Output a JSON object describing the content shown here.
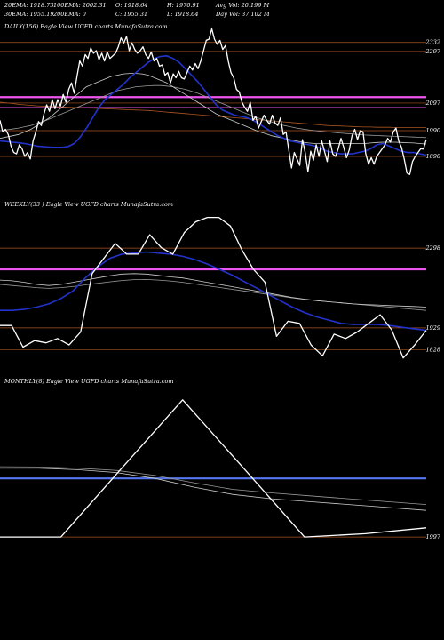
{
  "header": {
    "row1": [
      {
        "name": "ema20",
        "text": "20EMA: 1918.73"
      },
      {
        "name": "ema100",
        "text": "100EMA: 2002.31"
      },
      {
        "name": "open",
        "text": "O: 1918.64"
      },
      {
        "name": "high",
        "text": "H: 1970.91"
      },
      {
        "name": "avgvol",
        "text": "Avg Vol: 20.199 M"
      }
    ],
    "row2": [
      {
        "name": "ema30",
        "text": "30EMA: 1955.19"
      },
      {
        "name": "ema200",
        "text": "200EMA: 0"
      },
      {
        "name": "close",
        "text": "C: 1955.31"
      },
      {
        "name": "low",
        "text": "L: 1918.64"
      },
      {
        "name": "dayvol",
        "text": "Day Vol: 37.102  M"
      }
    ]
  },
  "colors": {
    "price": "#ffffff",
    "ema_fast": "#2233cc",
    "ema_slow": "#cccccc",
    "ema_slower": "#999999",
    "magenta": "#ee55ee",
    "blue_line": "#5577ee",
    "level": "#aa5522"
  },
  "chart_data": [
    {
      "type": "line",
      "title": "DAILY(156) Eagle   View  UGFD charts MunafaSutra.com",
      "price_labels": [
        2332,
        2297,
        2097,
        1990,
        1890
      ],
      "series": [
        {
          "role": "price",
          "values": [
            2030,
            1985,
            1995,
            1975,
            1930,
            1905,
            1900,
            1935,
            1920,
            1890,
            1905,
            1880,
            1950,
            1985,
            2025,
            2010,
            2055,
            2090,
            2065,
            2110,
            2075,
            2110,
            2085,
            2130,
            2100,
            2150,
            2175,
            2135,
            2200,
            2260,
            2240,
            2285,
            2270,
            2310,
            2290,
            2300,
            2265,
            2290,
            2260,
            2295,
            2270,
            2280,
            2290,
            2315,
            2350,
            2330,
            2355,
            2300,
            2330,
            2305,
            2290,
            2300,
            2315,
            2285,
            2270,
            2295,
            2260,
            2270,
            2240,
            2245,
            2205,
            2215,
            2175,
            2210,
            2195,
            2220,
            2195,
            2190,
            2215,
            2240,
            2225,
            2250,
            2230,
            2260,
            2300,
            2340,
            2345,
            2385,
            2345,
            2325,
            2340,
            2305,
            2320,
            2260,
            2215,
            2195,
            2150,
            2140,
            2100,
            2080,
            2065,
            2100,
            2030,
            2045,
            2000,
            2025,
            2050,
            2030,
            2015,
            2050,
            2020,
            2010,
            2040,
            1975,
            1985,
            1915,
            1845,
            1905,
            1880,
            1855,
            1955,
            1905,
            1830,
            1910,
            1875,
            1935,
            1890,
            1950,
            1910,
            1870,
            1950,
            1900,
            1890,
            1920,
            1960,
            1925,
            1885,
            1915,
            1970,
            1995,
            1955,
            1990,
            1985,
            1900,
            1860,
            1885,
            1860,
            1890,
            1905,
            1920,
            1935,
            1960,
            1945,
            1985,
            2000,
            1950,
            1925,
            1880,
            1825,
            1820,
            1870,
            1890,
            1905,
            1920,
            1918.64,
            1955.31
          ]
        },
        {
          "role": "ema_fast",
          "values": [
            1950,
            1948,
            1945,
            1943,
            1940,
            1935,
            1930,
            1928,
            1926,
            1925,
            1925,
            1928,
            1940,
            1965,
            2000,
            2040,
            2080,
            2110,
            2130,
            2150,
            2170,
            2195,
            2215,
            2235,
            2255,
            2270,
            2278,
            2280,
            2270,
            2255,
            2230,
            2205,
            2180,
            2150,
            2120,
            2090,
            2070,
            2060,
            2050,
            2045,
            2040,
            2030,
            2015,
            2000,
            1985,
            1970,
            1960,
            1950,
            1945,
            1940,
            1935,
            1930,
            1920,
            1910,
            1905,
            1900,
            1900,
            1900,
            1905,
            1910,
            1920,
            1935,
            1940,
            1930,
            1920,
            1910,
            1905,
            1905,
            1900,
            1895
          ]
        },
        {
          "role": "ema_slow",
          "values": [
            1960,
            1965,
            1970,
            1975,
            1985,
            1995,
            2010,
            2025,
            2040,
            2060,
            2080,
            2100,
            2120,
            2140,
            2160,
            2170,
            2180,
            2190,
            2200,
            2205,
            2210,
            2212,
            2212,
            2210,
            2205,
            2195,
            2185,
            2175,
            2160,
            2145,
            2130,
            2115,
            2100,
            2085,
            2070,
            2055,
            2045,
            2035,
            2025,
            2015,
            2005,
            1995,
            1985,
            1978,
            1970,
            1965,
            1960,
            1955,
            1950,
            1945,
            1942,
            1940,
            1940,
            1940,
            1940,
            1940,
            1940,
            1940,
            1940,
            1940,
            1942,
            1944,
            1945,
            1945,
            1945,
            1944,
            1943,
            1942,
            1940,
            1938
          ]
        },
        {
          "role": "ema_slower",
          "values": [
            1990,
            1993,
            1996,
            2000,
            2005,
            2010,
            2018,
            2025,
            2035,
            2045,
            2055,
            2065,
            2075,
            2085,
            2095,
            2105,
            2115,
            2125,
            2135,
            2145,
            2150,
            2155,
            2160,
            2162,
            2164,
            2165,
            2165,
            2163,
            2160,
            2155,
            2150,
            2143,
            2135,
            2125,
            2115,
            2105,
            2095,
            2085,
            2075,
            2065,
            2055,
            2045,
            2037,
            2030,
            2023,
            2016,
            2010,
            2005,
            2000,
            1996,
            1993,
            1990,
            1987,
            1985,
            1983,
            1981,
            1979,
            1977,
            1975,
            1973,
            1972,
            1971,
            1970,
            1969,
            1968,
            1967,
            1966,
            1965,
            1964,
            1963
          ]
        },
        {
          "role": "ema_100",
          "values": [
            2100,
            2098,
            2095,
            2092,
            2090,
            2088,
            2086,
            2085,
            2084,
            2083,
            2082,
            2081,
            2080,
            2079,
            2078,
            2077,
            2076,
            2075,
            2074,
            2073,
            2072,
            2071,
            2070,
            2069,
            2068,
            2066,
            2064,
            2062,
            2060,
            2058,
            2056,
            2054,
            2052,
            2050,
            2048,
            2046,
            2044,
            2042,
            2040,
            2038,
            2036,
            2034,
            2032,
            2030,
            2028,
            2026,
            2024,
            2022,
            2020,
            2018,
            2016,
            2014,
            2012,
            2010,
            2009,
            2008,
            2007,
            2006,
            2005,
            2004,
            2004,
            2003,
            2003,
            2003,
            2002,
            2002,
            2002,
            2002,
            2002,
            2002
          ]
        }
      ]
    },
    {
      "type": "line",
      "title": "WEEKLY(33                              ) Eagle   View  UGFD charts MunafaSutra.com",
      "price_labels": [
        2298,
        1929,
        1828
      ],
      "series": [
        {
          "role": "price",
          "values": [
            1940,
            1940,
            1840,
            1870,
            1860,
            1880,
            1850,
            1910,
            2180,
            2250,
            2320,
            2270,
            2270,
            2360,
            2300,
            2270,
            2370,
            2420,
            2440,
            2440,
            2400,
            2290,
            2200,
            2140,
            1890,
            1960,
            1950,
            1850,
            1800,
            1900,
            1880,
            1910,
            1950,
            1990,
            1920,
            1790,
            1850,
            1918
          ]
        },
        {
          "role": "ema_fast",
          "values": [
            2010,
            2010,
            2015,
            2025,
            2040,
            2065,
            2100,
            2160,
            2210,
            2250,
            2270,
            2275,
            2280,
            2275,
            2270,
            2260,
            2245,
            2225,
            2200,
            2175,
            2145,
            2115,
            2085,
            2055,
            2025,
            2000,
            1980,
            1965,
            1950,
            1945,
            1945,
            1945,
            1940,
            1932,
            1925,
            1918
          ]
        },
        {
          "role": "ema_slow",
          "values": [
            2150,
            2147,
            2140,
            2130,
            2125,
            2130,
            2140,
            2150,
            2160,
            2170,
            2178,
            2180,
            2178,
            2172,
            2165,
            2160,
            2150,
            2140,
            2130,
            2120,
            2110,
            2100,
            2090,
            2080,
            2070,
            2062,
            2055,
            2050,
            2045,
            2040,
            2037,
            2035,
            2032,
            2030,
            2028,
            2025
          ]
        },
        {
          "role": "ema_slower",
          "values": [
            2130,
            2125,
            2120,
            2115,
            2112,
            2115,
            2120,
            2128,
            2135,
            2142,
            2148,
            2152,
            2153,
            2150,
            2146,
            2140,
            2132,
            2124,
            2116,
            2108,
            2100,
            2092,
            2084,
            2076,
            2068,
            2061,
            2055,
            2050,
            2045,
            2040,
            2035,
            2030,
            2025,
            2020,
            2015,
            2010
          ]
        }
      ]
    },
    {
      "type": "line",
      "title": "MONTHLY(8) Eagle   View  UGFD charts MunafaSutra.com",
      "price_labels": [
        1997
      ],
      "series": [
        {
          "role": "price",
          "values": [
            1997,
            1997,
            2470,
            2940,
            2470,
            1997,
            2020,
            2060
          ]
        },
        {
          "role": "ema_slow",
          "values": [
            2470,
            2470,
            2460,
            2440,
            2400,
            2340,
            2290,
            2260,
            2240,
            2220,
            2200,
            2180
          ]
        },
        {
          "role": "ema_slower",
          "values": [
            2480,
            2478,
            2470,
            2455,
            2420,
            2370,
            2325,
            2300,
            2280,
            2260,
            2240,
            2220
          ]
        }
      ]
    }
  ]
}
